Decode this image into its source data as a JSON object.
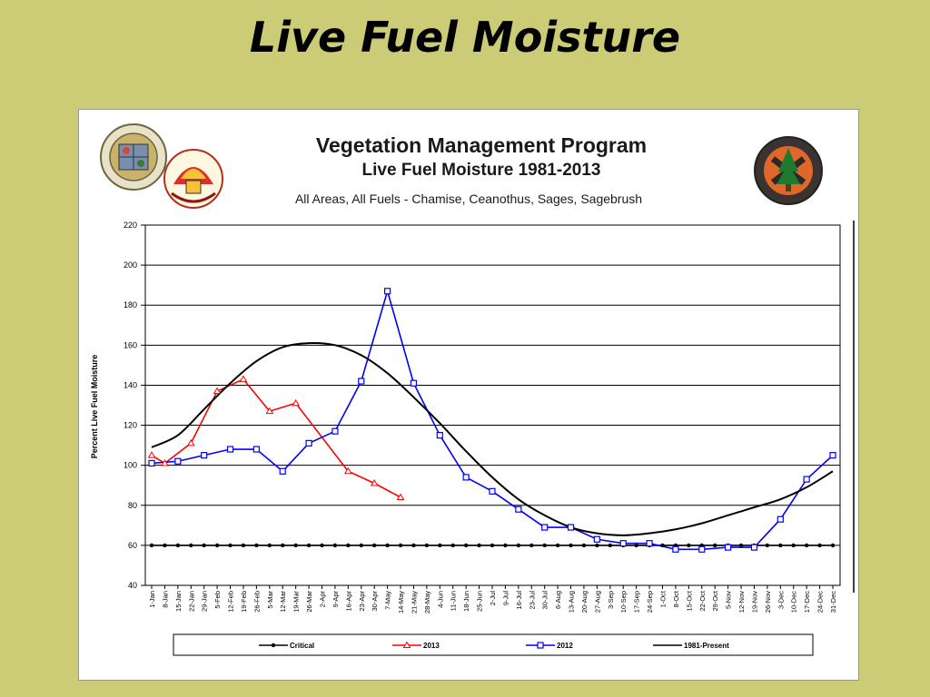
{
  "slide": {
    "title": "Live Fuel Moisture"
  },
  "header": {
    "title": "Vegetation Management Program",
    "subtitle": "Live Fuel Moisture 1981-2013",
    "description": "All Areas, All Fuels - Chamise, Ceanothus, Sages, Sagebrush",
    "logos": [
      {
        "name": "county-seal",
        "text": "COUNTY OF LOS ANGELES · CALIFORNIA"
      },
      {
        "name": "fire-department-logo",
        "text": "FIRE DEPARTMENT"
      },
      {
        "name": "forestry-division-logo",
        "text": "FORESTRY DIVISION"
      }
    ]
  },
  "chart_data": {
    "type": "line",
    "ylabel": "Percent Live Fuel Moisture",
    "xlabel": "",
    "ylim": [
      40,
      220
    ],
    "yticks": [
      40,
      60,
      80,
      100,
      120,
      140,
      160,
      180,
      200,
      220
    ],
    "grid": true,
    "legend_position": "bottom",
    "categories": [
      "1-Jan",
      "8-Jan",
      "15-Jan",
      "22-Jan",
      "29-Jan",
      "5-Feb",
      "12-Feb",
      "19-Feb",
      "26-Feb",
      "5-Mar",
      "12-Mar",
      "19-Mar",
      "26-Mar",
      "2-Apr",
      "9-Apr",
      "16-Apr",
      "23-Apr",
      "30-Apr",
      "7-May",
      "14-May",
      "21-May",
      "28-May",
      "4-Jun",
      "11-Jun",
      "18-Jun",
      "25-Jun",
      "2-Jul",
      "9-Jul",
      "16-Jul",
      "23-Jul",
      "30-Jul",
      "6-Aug",
      "13-Aug",
      "20-Aug",
      "27-Aug",
      "3-Sep",
      "10-Sep",
      "17-Sep",
      "24-Sep",
      "1-Oct",
      "8-Oct",
      "15-Oct",
      "22-Oct",
      "29-Oct",
      "5-Nov",
      "12-Nov",
      "19-Nov",
      "26-Nov",
      "3-Dec",
      "10-Dec",
      "17-Dec",
      "24-Dec",
      "31-Dec"
    ],
    "series": [
      {
        "name": "Critical",
        "color": "#000000",
        "marker": "circle",
        "smooth": false,
        "points": [
          [
            0,
            60
          ],
          [
            1,
            60
          ],
          [
            2,
            60
          ],
          [
            3,
            60
          ],
          [
            4,
            60
          ],
          [
            5,
            60
          ],
          [
            6,
            60
          ],
          [
            7,
            60
          ],
          [
            8,
            60
          ],
          [
            9,
            60
          ],
          [
            10,
            60
          ],
          [
            11,
            60
          ],
          [
            12,
            60
          ],
          [
            13,
            60
          ],
          [
            14,
            60
          ],
          [
            15,
            60
          ],
          [
            16,
            60
          ],
          [
            17,
            60
          ],
          [
            18,
            60
          ],
          [
            19,
            60
          ],
          [
            20,
            60
          ],
          [
            21,
            60
          ],
          [
            22,
            60
          ],
          [
            23,
            60
          ],
          [
            24,
            60
          ],
          [
            25,
            60
          ],
          [
            26,
            60
          ],
          [
            27,
            60
          ],
          [
            28,
            60
          ],
          [
            29,
            60
          ],
          [
            30,
            60
          ],
          [
            31,
            60
          ],
          [
            32,
            60
          ],
          [
            33,
            60
          ],
          [
            34,
            60
          ],
          [
            35,
            60
          ],
          [
            36,
            60
          ],
          [
            37,
            60
          ],
          [
            38,
            60
          ],
          [
            39,
            60
          ],
          [
            40,
            60
          ],
          [
            41,
            60
          ],
          [
            42,
            60
          ],
          [
            43,
            60
          ],
          [
            44,
            60
          ],
          [
            45,
            60
          ],
          [
            46,
            60
          ],
          [
            47,
            60
          ],
          [
            48,
            60
          ],
          [
            49,
            60
          ],
          [
            50,
            60
          ],
          [
            51,
            60
          ],
          [
            52,
            60
          ]
        ]
      },
      {
        "name": "2013",
        "color": "#ff0000",
        "marker": "triangle",
        "smooth": false,
        "points": [
          [
            0,
            105
          ],
          [
            1,
            101
          ],
          [
            3,
            111
          ],
          [
            5,
            137
          ],
          [
            7,
            143
          ],
          [
            9,
            127
          ],
          [
            11,
            131
          ],
          [
            15,
            97
          ],
          [
            17,
            91
          ],
          [
            19,
            84
          ]
        ]
      },
      {
        "name": "2012",
        "color": "#0000ff",
        "marker": "square",
        "smooth": false,
        "points": [
          [
            0,
            101
          ],
          [
            2,
            102
          ],
          [
            4,
            105
          ],
          [
            6,
            108
          ],
          [
            8,
            108
          ],
          [
            10,
            97
          ],
          [
            12,
            111
          ],
          [
            14,
            117
          ],
          [
            16,
            142
          ],
          [
            18,
            187
          ],
          [
            20,
            141
          ],
          [
            22,
            115
          ],
          [
            24,
            94
          ],
          [
            26,
            87
          ],
          [
            28,
            78
          ],
          [
            30,
            69
          ],
          [
            32,
            69
          ],
          [
            34,
            63
          ],
          [
            36,
            61
          ],
          [
            38,
            61
          ],
          [
            40,
            58
          ],
          [
            42,
            58
          ],
          [
            44,
            59
          ],
          [
            46,
            59
          ],
          [
            48,
            73
          ],
          [
            50,
            93
          ],
          [
            52,
            105
          ]
        ]
      },
      {
        "name": "1981-Present",
        "color": "#000000",
        "marker": "none",
        "smooth": true,
        "points": [
          [
            0,
            109
          ],
          [
            2,
            115
          ],
          [
            4,
            128
          ],
          [
            6,
            141
          ],
          [
            8,
            152
          ],
          [
            10,
            159
          ],
          [
            12,
            161
          ],
          [
            14,
            160
          ],
          [
            16,
            155
          ],
          [
            18,
            146
          ],
          [
            20,
            134
          ],
          [
            22,
            121
          ],
          [
            24,
            107
          ],
          [
            26,
            94
          ],
          [
            28,
            83
          ],
          [
            30,
            75
          ],
          [
            32,
            69
          ],
          [
            34,
            66
          ],
          [
            36,
            65
          ],
          [
            38,
            66
          ],
          [
            40,
            68
          ],
          [
            42,
            71
          ],
          [
            44,
            75
          ],
          [
            46,
            79
          ],
          [
            48,
            83
          ],
          [
            50,
            89
          ],
          [
            52,
            97
          ]
        ]
      }
    ]
  }
}
